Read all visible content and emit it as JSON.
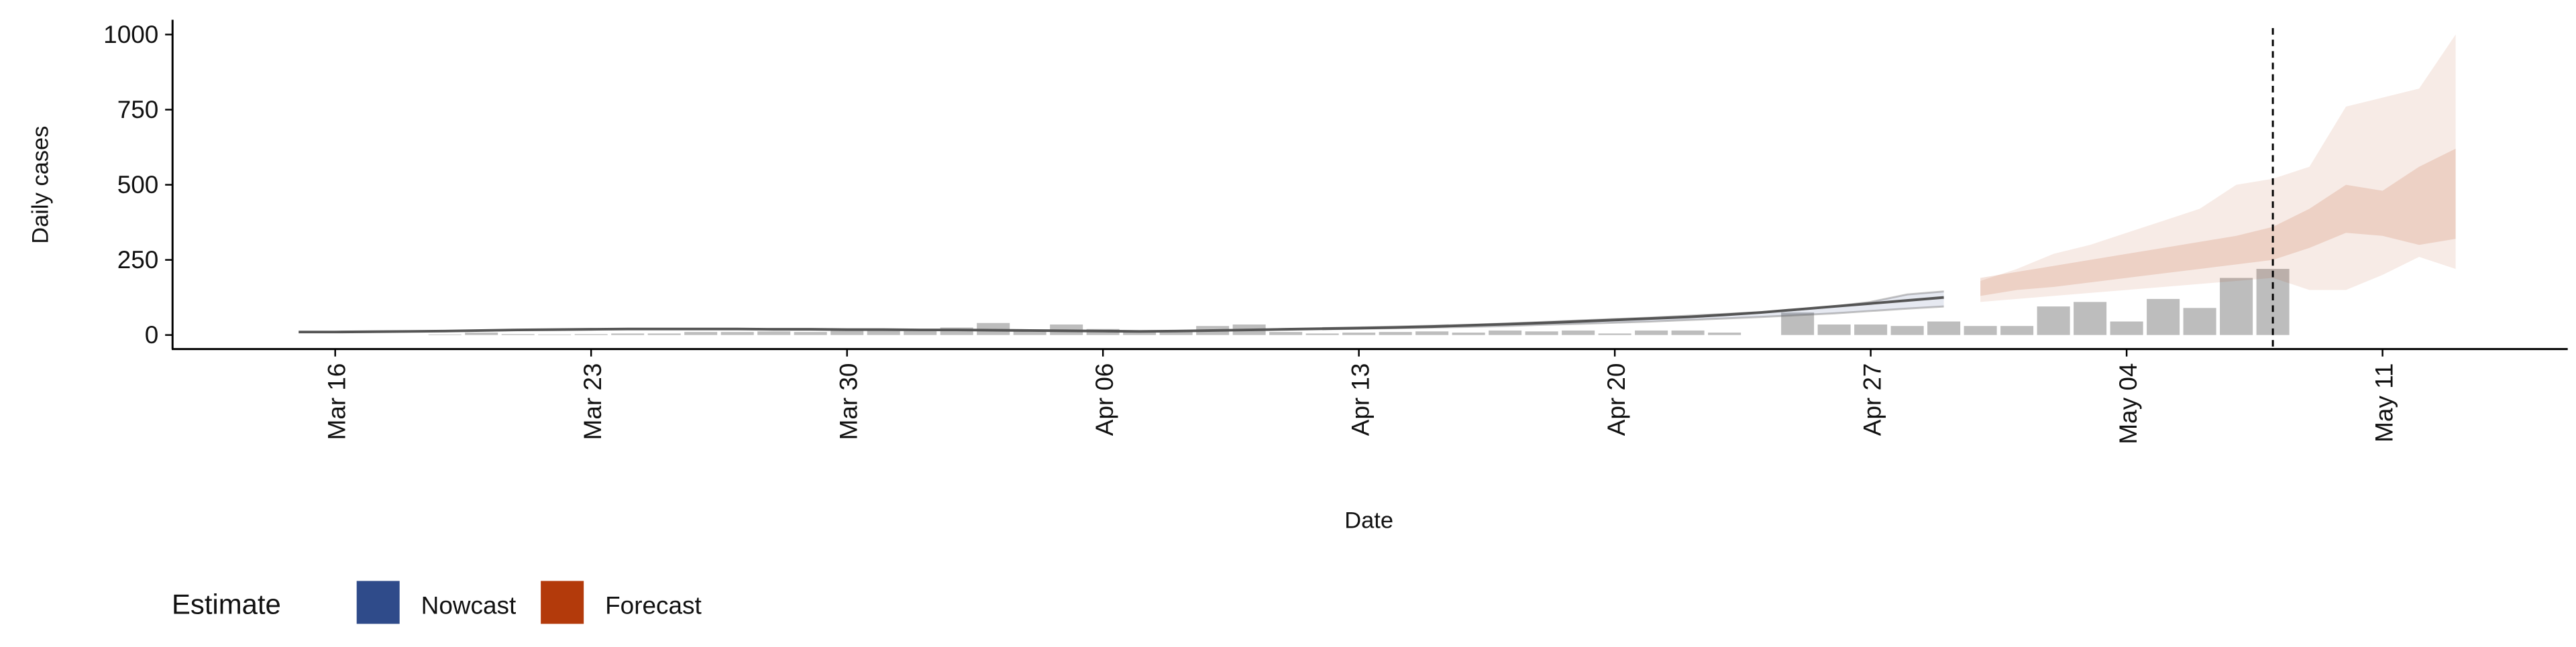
{
  "chart_data": {
    "type": "bar",
    "x_label": "Date",
    "y_label": "Daily cases",
    "categories": [
      null,
      "Mar 16",
      null,
      null,
      null,
      null,
      null,
      null,
      "Mar 23",
      null,
      null,
      null,
      null,
      null,
      null,
      "Mar 30",
      null,
      null,
      null,
      null,
      null,
      null,
      "Apr 06",
      null,
      null,
      null,
      null,
      null,
      null,
      "Apr 13",
      null,
      null,
      null,
      null,
      null,
      null,
      "Apr 20",
      null,
      null,
      null,
      null,
      null,
      null,
      "Apr 27",
      null,
      null,
      null,
      null,
      null,
      null,
      "May 04",
      null,
      null,
      null,
      null,
      null,
      null,
      "May 11",
      null,
      null
    ],
    "values": [
      0,
      0,
      0,
      0,
      2,
      8,
      3,
      2,
      3,
      5,
      5,
      10,
      10,
      12,
      10,
      20,
      15,
      15,
      25,
      40,
      15,
      35,
      20,
      10,
      12,
      30,
      35,
      10,
      5,
      8,
      10,
      12,
      8,
      15,
      12,
      15,
      5,
      15,
      15,
      8,
      0,
      75,
      35,
      35,
      30,
      45,
      30,
      30,
      95,
      110,
      45,
      120,
      90,
      190,
      220,
      null,
      null,
      null,
      null,
      null
    ],
    "color": "#bdbdbd",
    "series": [
      {
        "name": "Nowcast",
        "color": "#2f4b8a",
        "line_color": "#555555",
        "values": [
          10,
          10,
          11,
          12,
          13,
          15,
          17,
          18,
          19,
          20,
          20,
          20,
          20,
          19,
          19,
          18,
          18,
          17,
          17,
          16,
          15,
          14,
          13,
          12,
          13,
          15,
          17,
          19,
          21,
          23,
          25,
          28,
          32,
          36,
          40,
          45,
          50,
          55,
          60,
          67,
          75,
          85,
          95,
          105,
          115,
          125,
          null,
          null,
          null,
          null,
          null,
          null,
          null,
          null,
          null,
          null,
          null,
          null,
          null,
          null
        ],
        "lower": [
          null,
          null,
          null,
          null,
          null,
          null,
          null,
          null,
          null,
          null,
          null,
          null,
          null,
          null,
          null,
          null,
          null,
          null,
          null,
          null,
          null,
          null,
          null,
          null,
          null,
          null,
          null,
          null,
          19,
          21,
          23,
          25,
          27,
          30,
          34,
          37,
          41,
          45,
          50,
          55,
          60,
          66,
          72,
          80,
          88,
          95,
          null,
          null,
          null,
          null,
          null,
          null,
          null,
          null,
          null,
          null,
          null,
          null,
          null,
          null
        ],
        "upper": [
          null,
          null,
          null,
          null,
          null,
          null,
          null,
          null,
          null,
          null,
          null,
          null,
          null,
          null,
          null,
          null,
          null,
          null,
          null,
          null,
          null,
          null,
          null,
          null,
          null,
          null,
          null,
          null,
          23,
          25,
          28,
          31,
          34,
          38,
          43,
          48,
          53,
          58,
          64,
          70,
          76,
          84,
          95,
          110,
          135,
          145,
          null,
          null,
          null,
          null,
          null,
          null,
          null,
          null,
          null,
          null,
          null,
          null,
          null,
          null
        ]
      },
      {
        "name": "Forecast",
        "color": "#b33a0b",
        "lower": [
          null,
          null,
          null,
          null,
          null,
          null,
          null,
          null,
          null,
          null,
          null,
          null,
          null,
          null,
          null,
          null,
          null,
          null,
          null,
          null,
          null,
          null,
          null,
          null,
          null,
          null,
          null,
          null,
          null,
          null,
          null,
          null,
          null,
          null,
          null,
          null,
          null,
          null,
          null,
          null,
          null,
          null,
          null,
          null,
          null,
          null,
          130,
          150,
          160,
          175,
          190,
          205,
          220,
          235,
          250,
          290,
          340,
          330,
          300,
          320
        ],
        "upper": [
          null,
          null,
          null,
          null,
          null,
          null,
          null,
          null,
          null,
          null,
          null,
          null,
          null,
          null,
          null,
          null,
          null,
          null,
          null,
          null,
          null,
          null,
          null,
          null,
          null,
          null,
          null,
          null,
          null,
          null,
          null,
          null,
          null,
          null,
          null,
          null,
          null,
          null,
          null,
          null,
          null,
          null,
          null,
          null,
          null,
          null,
          190,
          210,
          230,
          250,
          270,
          290,
          310,
          330,
          360,
          420,
          500,
          480,
          560,
          620
        ],
        "lower_outer": [
          null,
          null,
          null,
          null,
          null,
          null,
          null,
          null,
          null,
          null,
          null,
          null,
          null,
          null,
          null,
          null,
          null,
          null,
          null,
          null,
          null,
          null,
          null,
          null,
          null,
          null,
          null,
          null,
          null,
          null,
          null,
          null,
          null,
          null,
          null,
          null,
          null,
          null,
          null,
          null,
          null,
          null,
          null,
          null,
          null,
          null,
          110,
          120,
          130,
          140,
          150,
          160,
          170,
          180,
          190,
          150,
          150,
          200,
          260,
          220
        ],
        "upper_outer": [
          null,
          null,
          null,
          null,
          null,
          null,
          null,
          null,
          null,
          null,
          null,
          null,
          null,
          null,
          null,
          null,
          null,
          null,
          null,
          null,
          null,
          null,
          null,
          null,
          null,
          null,
          null,
          null,
          null,
          null,
          null,
          null,
          null,
          null,
          null,
          null,
          null,
          null,
          null,
          null,
          null,
          null,
          null,
          null,
          null,
          null,
          180,
          220,
          270,
          300,
          340,
          380,
          420,
          500,
          520,
          560,
          760,
          790,
          820,
          1000
        ]
      }
    ],
    "reference_line": {
      "x": 54
    },
    "ylim": [
      -44,
      1049
    ],
    "yticks": [
      0,
      250,
      500,
      750,
      1000
    ],
    "legend": {
      "title": "Estimate",
      "position": "bottom-left"
    }
  }
}
